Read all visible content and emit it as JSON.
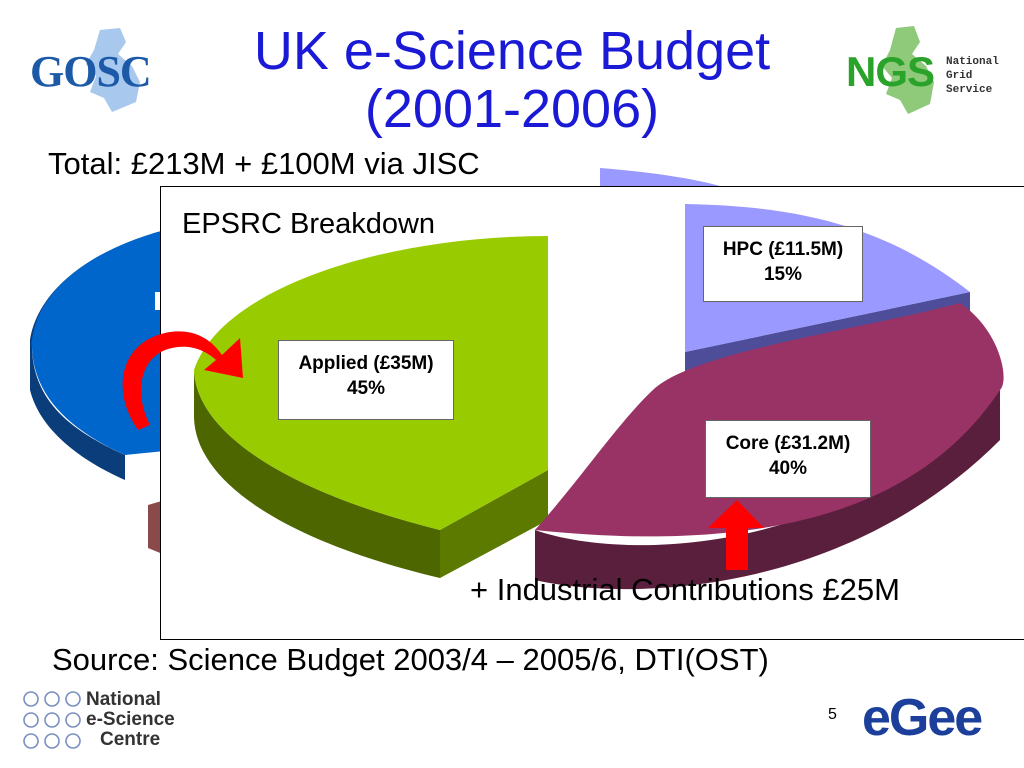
{
  "slide": {
    "title_line1": "UK e-Science Budget",
    "title_line2": "(2001-2006)",
    "total": "Total: £213M + £100M via JISC",
    "source": "Source: Science Budget 2003/4 – 2005/6, DTI(OST)",
    "page_number": "5"
  },
  "inset": {
    "title": "EPSRC Breakdown",
    "footnote": "+ Industrial Contributions £25M"
  },
  "chart_data": [
    {
      "type": "pie",
      "title": "EPSRC Breakdown",
      "style": "3d-exploded",
      "slices": [
        {
          "label": "Applied (£35M)",
          "value": 35,
          "percent": "45%",
          "color": "#99cc00"
        },
        {
          "label": "HPC (£11.5M)",
          "value": 11.5,
          "percent": "15%",
          "color": "#9999ff"
        },
        {
          "label": "Core (£31.2M)",
          "value": 31.2,
          "percent": "40%",
          "color": "#993366"
        }
      ]
    }
  ],
  "logos": {
    "gosc": "GOSC",
    "ngs": "NGS",
    "ngs_sub": [
      "National",
      "Grid",
      "Service"
    ],
    "nesc": [
      "National",
      "e-Science",
      "Centre"
    ],
    "egee": "eGee"
  },
  "colors": {
    "title": "#1a1ad6",
    "background_pie": "#0066cc",
    "arrow": "#ff0000"
  }
}
